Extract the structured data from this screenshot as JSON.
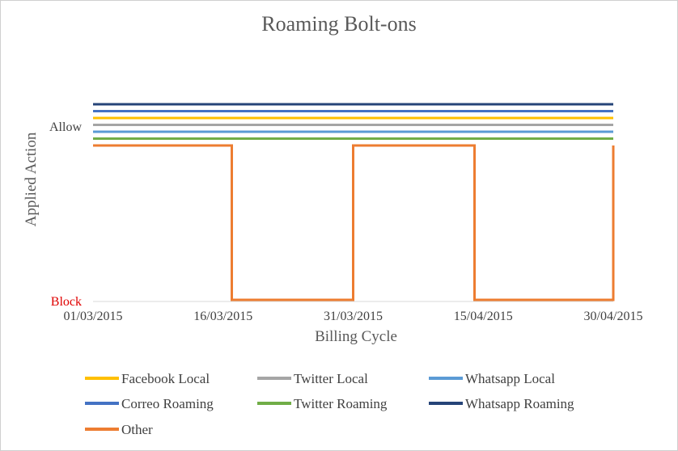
{
  "chart_data": {
    "type": "line",
    "title": "Roaming Bolt-ons",
    "xlabel": "Billing Cycle",
    "ylabel": "Applied Action",
    "x_ticks": [
      "01/03/2015",
      "16/03/2015",
      "31/03/2015",
      "15/04/2015",
      "30/04/2015"
    ],
    "y_ticks": [
      {
        "value": 1,
        "label": "Allow",
        "color": "#404040"
      },
      {
        "value": 0,
        "label": "Block",
        "color": "#e00000"
      }
    ],
    "ylim": [
      0,
      1
    ],
    "grid": false,
    "legend_position": "bottom",
    "series": [
      {
        "name": "Whatsapp Roaming",
        "color": "#264478",
        "type": "constant",
        "value": "Allow"
      },
      {
        "name": "Correo Roaming",
        "color": "#4472c4",
        "type": "constant",
        "value": "Allow"
      },
      {
        "name": "Facebook Local",
        "color": "#ffc000",
        "type": "constant",
        "value": "Allow"
      },
      {
        "name": "Twitter Local",
        "color": "#a5a5a5",
        "type": "constant",
        "value": "Allow"
      },
      {
        "name": "Whatsapp Local",
        "color": "#5b9bd5",
        "type": "constant",
        "value": "Allow"
      },
      {
        "name": "Twitter Roaming",
        "color": "#70ad47",
        "type": "constant",
        "value": "Allow"
      },
      {
        "name": "Other",
        "color": "#ed7d31",
        "type": "step",
        "points": [
          {
            "x": "01/03/2015",
            "y": 1
          },
          {
            "x": "17/03/2015",
            "y": 1
          },
          {
            "x": "17/03/2015",
            "y": 0
          },
          {
            "x": "31/03/2015",
            "y": 0
          },
          {
            "x": "31/03/2015",
            "y": 1
          },
          {
            "x": "14/04/2015",
            "y": 1
          },
          {
            "x": "14/04/2015",
            "y": 0
          },
          {
            "x": "30/04/2015",
            "y": 0
          },
          {
            "x": "30/04/2015",
            "y": 1
          }
        ]
      }
    ],
    "legend_order": [
      "Facebook Local",
      "Twitter Local",
      "Whatsapp Local",
      "Correo Roaming",
      "Twitter Roaming",
      "Whatsapp Roaming",
      "Other"
    ]
  }
}
